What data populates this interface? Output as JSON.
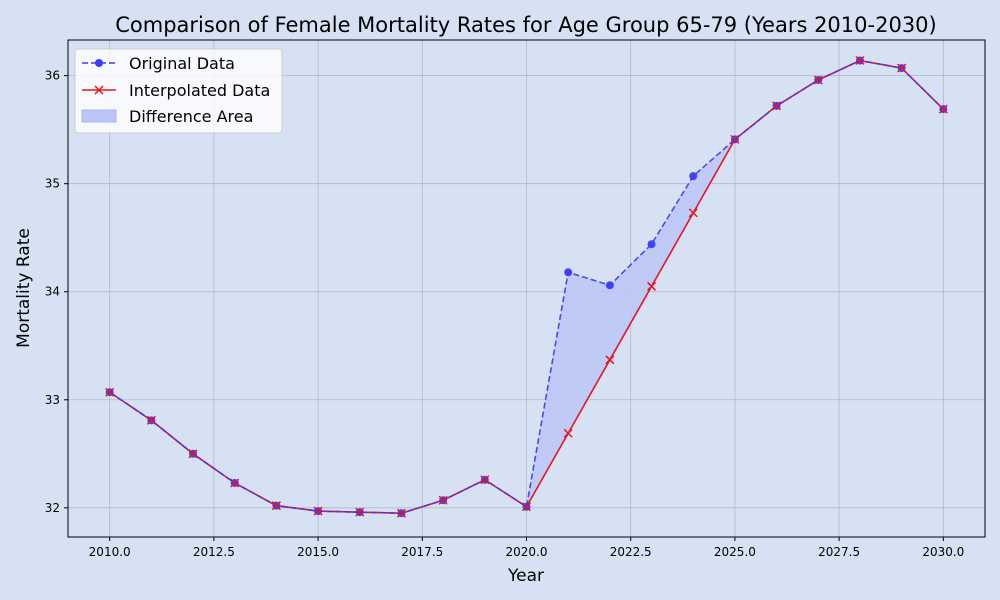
{
  "chart_data": {
    "type": "line",
    "title": "Comparison of Female Mortality Rates for Age Group 65-79 (Years 2010-2030)",
    "xlabel": "Year",
    "ylabel": "Mortality Rate",
    "xlim": [
      2009.0,
      2031.0
    ],
    "ylim": [
      31.73,
      36.33
    ],
    "xticks": [
      2010.0,
      2012.5,
      2015.0,
      2017.5,
      2020.0,
      2022.5,
      2025.0,
      2027.5,
      2030.0
    ],
    "xtick_labels": [
      "2010.0",
      "2012.5",
      "2015.0",
      "2017.5",
      "2020.0",
      "2022.5",
      "2025.0",
      "2027.5",
      "2030.0"
    ],
    "yticks": [
      32,
      33,
      34,
      35,
      36
    ],
    "ytick_labels": [
      "32",
      "33",
      "34",
      "35",
      "36"
    ],
    "grid": true,
    "legend_position": "top-left",
    "x": [
      2010,
      2011,
      2012,
      2013,
      2014,
      2015,
      2016,
      2017,
      2018,
      2019,
      2020,
      2021,
      2022,
      2023,
      2024,
      2025,
      2026,
      2027,
      2028,
      2029,
      2030
    ],
    "series": [
      {
        "name": "Original Data",
        "style": "dashed",
        "marker": "circle",
        "color": "#3b3bf0",
        "values": [
          33.07,
          32.81,
          32.5,
          32.23,
          32.02,
          31.97,
          31.96,
          31.95,
          32.07,
          32.26,
          32.01,
          34.18,
          34.06,
          34.44,
          35.07,
          35.41,
          35.72,
          35.96,
          36.14,
          36.07,
          35.69
        ]
      },
      {
        "name": "Interpolated Data",
        "style": "solid",
        "marker": "x",
        "color": "#e8141e",
        "values": [
          33.07,
          32.81,
          32.5,
          32.23,
          32.02,
          31.97,
          31.96,
          31.95,
          32.07,
          32.26,
          32.01,
          32.69,
          33.37,
          34.05,
          34.73,
          35.41,
          35.72,
          35.96,
          36.14,
          36.07,
          35.69
        ]
      }
    ],
    "fill_between": {
      "name": "Difference Area",
      "color": "#bcc6f6"
    }
  }
}
